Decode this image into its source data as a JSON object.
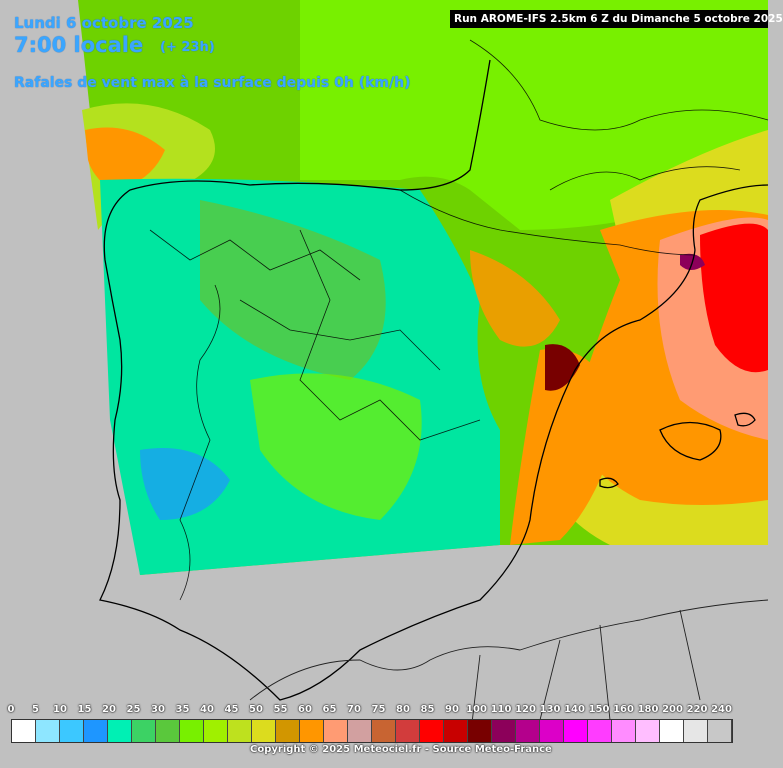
{
  "header": {
    "date": "Lundi 6 octobre 2025",
    "time": "7:00 locale",
    "lead": "(+ 23h)",
    "variable": "Rafales de vent max à la surface depuis 0h (km/h)",
    "run": "Run AROME-IFS 2.5km 6 Z du Dimanche 5 octobre 2025"
  },
  "legend": {
    "ticks": [
      "0",
      "5",
      "10",
      "15",
      "20",
      "25",
      "30",
      "35",
      "40",
      "45",
      "50",
      "55",
      "60",
      "65",
      "70",
      "75",
      "80",
      "85",
      "90",
      "100",
      "110",
      "120",
      "130",
      "140",
      "150",
      "160",
      "180",
      "200",
      "220",
      "240"
    ],
    "colors": [
      "#ffffff",
      "#8ee6ff",
      "#3cc8ff",
      "#1e96ff",
      "#00f0b4",
      "#3cd264",
      "#5ac83c",
      "#78f000",
      "#a0f000",
      "#bee11e",
      "#dcdc1e",
      "#d29600",
      "#ff9600",
      "#ff9b73",
      "#d2a0a0",
      "#c86432",
      "#d23c3c",
      "#ff0000",
      "#c80000",
      "#780000",
      "#8c005a",
      "#b4008c",
      "#dc00c8",
      "#ff00ff",
      "#ff3cff",
      "#ff8cff",
      "#ffbeff",
      "#ffffff",
      "#e6e6e6",
      "#c8c8c8"
    ]
  },
  "footer": {
    "copyright": "Copyright © 2025 Meteociel.fr - Source Meteo-France"
  },
  "map": {
    "region": "Iberian Peninsula and south of France",
    "colors": {
      "sea_outside_domain": "#c0c0c0",
      "background_field": "#6ee000",
      "coast_line": "#000000"
    }
  }
}
